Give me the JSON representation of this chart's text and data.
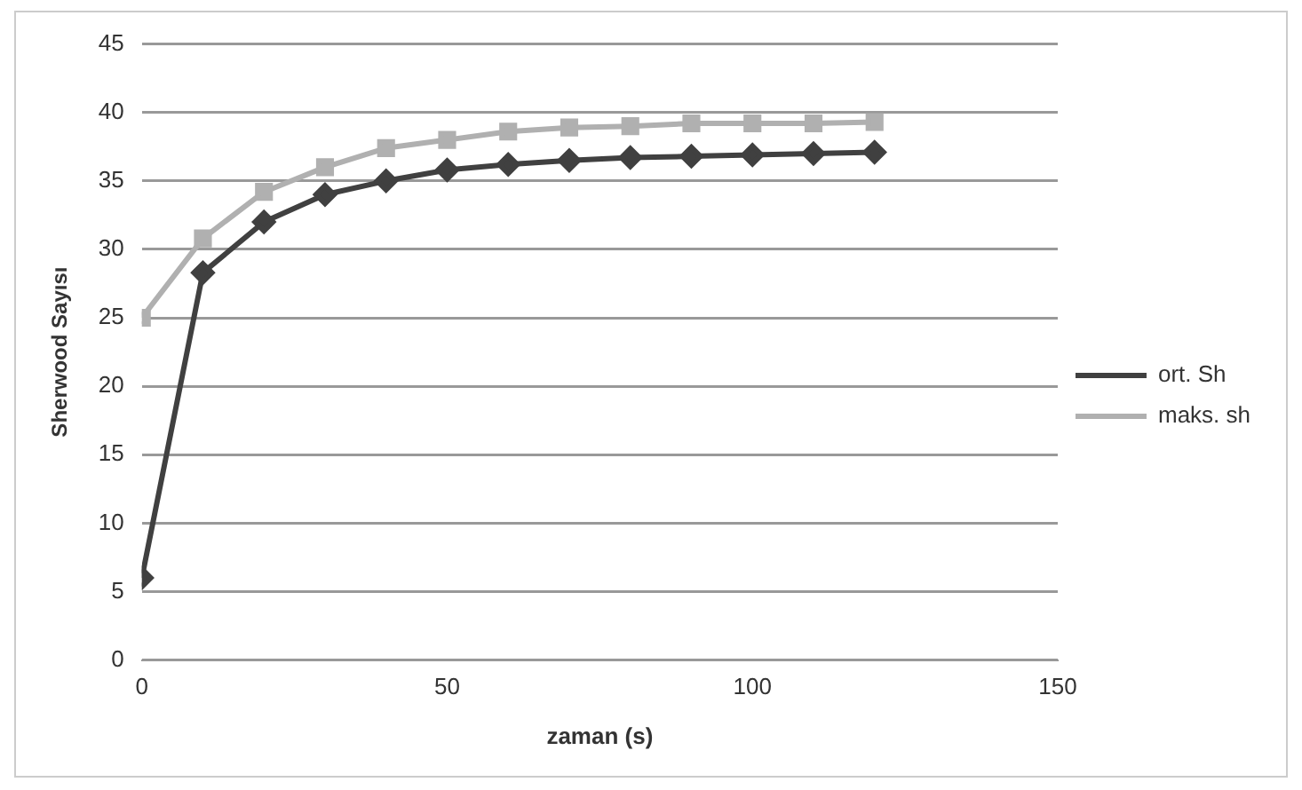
{
  "chart_data": {
    "type": "line",
    "xlabel": "zaman (s)",
    "ylabel": "Sherwood Sayısı",
    "x": [
      0,
      10,
      20,
      30,
      40,
      50,
      60,
      70,
      80,
      90,
      100,
      110,
      120
    ],
    "series": [
      {
        "name": "ort. Sh",
        "color": "#404040",
        "marker": "diamond",
        "values": [
          6,
          28.3,
          32,
          34,
          35,
          35.8,
          36.2,
          36.5,
          36.7,
          36.8,
          36.9,
          37,
          37.1
        ]
      },
      {
        "name": "maks. sh",
        "color": "#b0b0b0",
        "marker": "square",
        "values": [
          25,
          30.8,
          34.2,
          36,
          37.4,
          38,
          38.6,
          38.9,
          39,
          39.2,
          39.2,
          39.2,
          39.3
        ]
      }
    ],
    "xlim": [
      0,
      150
    ],
    "xticks": [
      0,
      50,
      100,
      150
    ],
    "ylim": [
      0,
      45
    ],
    "yticks": [
      0,
      5,
      10,
      15,
      20,
      25,
      30,
      35,
      40,
      45
    ],
    "grid": "y",
    "legend": "right"
  }
}
